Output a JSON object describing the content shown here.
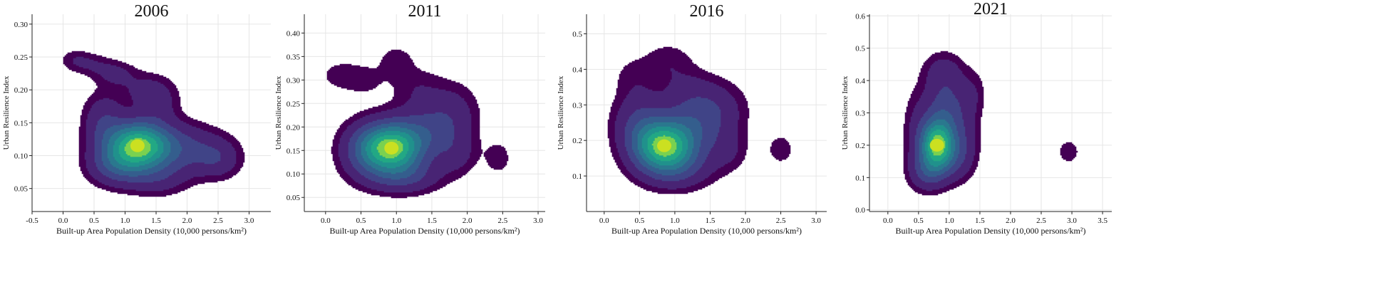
{
  "figure": {
    "xlabel": "Built-up Area Population Density (10,000 persons/km²)",
    "ylabel": "Urban Resilience Index"
  },
  "chart_data": [
    {
      "type": "kde_contour",
      "title": "2006",
      "xlabel": "Built-up Area Population Density (10,000 persons/km²)",
      "ylabel": "Urban Resilience Index",
      "xlim": [
        -0.5,
        3.35
      ],
      "ylim": [
        0.015,
        0.315
      ],
      "xticks": [
        -0.5,
        0.0,
        0.5,
        1.0,
        1.5,
        2.0,
        2.5,
        3.0
      ],
      "yticks": [
        0.05,
        0.1,
        0.15,
        0.2,
        0.25,
        0.3
      ],
      "grid": true,
      "colormap": "viridis",
      "peak": {
        "x": 1.2,
        "y": 0.115
      },
      "components": [
        {
          "x": 1.2,
          "y": 0.115,
          "sx": 0.33,
          "sy": 0.024,
          "w": 1.0
        },
        {
          "x": 1.85,
          "y": 0.11,
          "sx": 0.45,
          "sy": 0.025,
          "w": 0.3
        },
        {
          "x": 2.5,
          "y": 0.095,
          "sx": 0.25,
          "sy": 0.02,
          "w": 0.18
        },
        {
          "x": 0.85,
          "y": 0.085,
          "sx": 0.3,
          "sy": 0.02,
          "w": 0.3
        },
        {
          "x": 1.5,
          "y": 0.065,
          "sx": 0.35,
          "sy": 0.018,
          "w": 0.16
        },
        {
          "x": 0.65,
          "y": 0.15,
          "sx": 0.22,
          "sy": 0.03,
          "w": 0.22
        },
        {
          "x": 1.35,
          "y": 0.2,
          "sx": 0.3,
          "sy": 0.018,
          "w": 0.14
        },
        {
          "x": 0.85,
          "y": 0.225,
          "sx": 0.22,
          "sy": 0.013,
          "w": 0.13
        },
        {
          "x": 0.2,
          "y": 0.245,
          "sx": 0.18,
          "sy": 0.012,
          "w": 0.1
        },
        {
          "x": 0.5,
          "y": 0.238,
          "sx": 0.2,
          "sy": 0.012,
          "w": 0.09
        },
        {
          "x": 1.55,
          "y": 0.175,
          "sx": 0.22,
          "sy": 0.02,
          "w": 0.12
        }
      ]
    },
    {
      "type": "kde_contour",
      "title": "2011",
      "xlabel": "Built-up Area Population Density (10,000 persons/km²)",
      "ylabel": "Urban Resilience Index",
      "xlim": [
        -0.3,
        3.1
      ],
      "ylim": [
        0.02,
        0.44
      ],
      "xticks": [
        0.0,
        0.5,
        1.0,
        1.5,
        2.0,
        2.5,
        3.0
      ],
      "yticks": [
        0.05,
        0.1,
        0.15,
        0.2,
        0.25,
        0.3,
        0.35,
        0.4
      ],
      "grid": true,
      "colormap": "viridis",
      "peak": {
        "x": 0.93,
        "y": 0.155
      },
      "components": [
        {
          "x": 0.93,
          "y": 0.155,
          "sx": 0.28,
          "sy": 0.034,
          "w": 1.0
        },
        {
          "x": 1.45,
          "y": 0.19,
          "sx": 0.35,
          "sy": 0.04,
          "w": 0.28
        },
        {
          "x": 0.55,
          "y": 0.15,
          "sx": 0.25,
          "sy": 0.04,
          "w": 0.25
        },
        {
          "x": 1.1,
          "y": 0.095,
          "sx": 0.35,
          "sy": 0.025,
          "w": 0.25
        },
        {
          "x": 1.8,
          "y": 0.24,
          "sx": 0.25,
          "sy": 0.04,
          "w": 0.12
        },
        {
          "x": 1.85,
          "y": 0.14,
          "sx": 0.2,
          "sy": 0.03,
          "w": 0.12
        },
        {
          "x": 1.0,
          "y": 0.34,
          "sx": 0.18,
          "sy": 0.025,
          "w": 0.09
        },
        {
          "x": 0.2,
          "y": 0.31,
          "sx": 0.2,
          "sy": 0.022,
          "w": 0.085
        },
        {
          "x": 0.55,
          "y": 0.3,
          "sx": 0.2,
          "sy": 0.025,
          "w": 0.075
        },
        {
          "x": 1.3,
          "y": 0.285,
          "sx": 0.25,
          "sy": 0.03,
          "w": 0.09
        },
        {
          "x": 2.44,
          "y": 0.134,
          "sx": 0.13,
          "sy": 0.025,
          "w": 0.095
        }
      ]
    },
    {
      "type": "kde_contour",
      "title": "2016",
      "xlabel": "Built-up Area Population Density (10,000 persons/km²)",
      "ylabel": "Urban Resilience Index",
      "xlim": [
        -0.25,
        3.15
      ],
      "ylim": [
        0.0,
        0.555
      ],
      "xticks": [
        0.0,
        0.5,
        1.0,
        1.5,
        2.0,
        2.5,
        3.0
      ],
      "yticks": [
        0.1,
        0.2,
        0.3,
        0.4,
        0.5
      ],
      "grid": true,
      "colormap": "viridis",
      "peak": {
        "x": 0.85,
        "y": 0.185
      },
      "components": [
        {
          "x": 0.85,
          "y": 0.185,
          "sx": 0.28,
          "sy": 0.045,
          "w": 1.0
        },
        {
          "x": 1.3,
          "y": 0.25,
          "sx": 0.35,
          "sy": 0.06,
          "w": 0.3
        },
        {
          "x": 0.5,
          "y": 0.25,
          "sx": 0.25,
          "sy": 0.06,
          "w": 0.25
        },
        {
          "x": 1.0,
          "y": 0.12,
          "sx": 0.35,
          "sy": 0.04,
          "w": 0.25
        },
        {
          "x": 1.6,
          "y": 0.3,
          "sx": 0.3,
          "sy": 0.05,
          "w": 0.1
        },
        {
          "x": 1.75,
          "y": 0.17,
          "sx": 0.2,
          "sy": 0.04,
          "w": 0.1
        },
        {
          "x": 0.9,
          "y": 0.42,
          "sx": 0.25,
          "sy": 0.04,
          "w": 0.1
        },
        {
          "x": 0.4,
          "y": 0.38,
          "sx": 0.2,
          "sy": 0.04,
          "w": 0.07
        },
        {
          "x": 1.2,
          "y": 0.35,
          "sx": 0.25,
          "sy": 0.04,
          "w": 0.07
        },
        {
          "x": 2.5,
          "y": 0.175,
          "sx": 0.14,
          "sy": 0.032,
          "w": 0.095
        }
      ]
    },
    {
      "type": "kde_contour",
      "title": "2021",
      "xlabel": "Built-up Area Population Density (10,000 persons/km²)",
      "ylabel": "Urban Resilience Index",
      "xlim": [
        -0.3,
        3.65
      ],
      "ylim": [
        -0.005,
        0.605
      ],
      "xticks": [
        0.0,
        0.5,
        1.0,
        1.5,
        2.0,
        2.5,
        3.0,
        3.5
      ],
      "yticks": [
        0.0,
        0.1,
        0.2,
        0.3,
        0.4,
        0.5,
        0.6
      ],
      "grid": true,
      "colormap": "viridis",
      "peak": {
        "x": 0.8,
        "y": 0.2
      },
      "components": [
        {
          "x": 0.8,
          "y": 0.2,
          "sx": 0.18,
          "sy": 0.05,
          "w": 1.0
        },
        {
          "x": 0.95,
          "y": 0.3,
          "sx": 0.25,
          "sy": 0.08,
          "w": 0.35
        },
        {
          "x": 0.65,
          "y": 0.12,
          "sx": 0.2,
          "sy": 0.04,
          "w": 0.3
        },
        {
          "x": 1.1,
          "y": 0.16,
          "sx": 0.2,
          "sy": 0.05,
          "w": 0.2
        },
        {
          "x": 0.9,
          "y": 0.43,
          "sx": 0.22,
          "sy": 0.04,
          "w": 0.12
        },
        {
          "x": 1.4,
          "y": 0.36,
          "sx": 0.14,
          "sy": 0.05,
          "w": 0.09
        },
        {
          "x": 1.3,
          "y": 0.22,
          "sx": 0.15,
          "sy": 0.06,
          "w": 0.08
        },
        {
          "x": 0.45,
          "y": 0.25,
          "sx": 0.15,
          "sy": 0.08,
          "w": 0.1
        },
        {
          "x": 2.95,
          "y": 0.18,
          "sx": 0.14,
          "sy": 0.03,
          "w": 0.095
        }
      ]
    }
  ]
}
